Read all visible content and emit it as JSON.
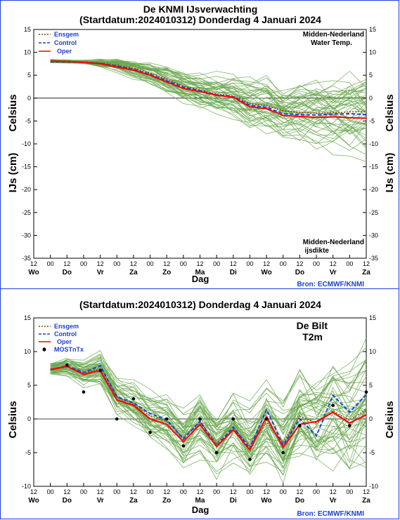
{
  "chart_data": [
    {
      "type": "line",
      "title": "De KNMI IJsverwachting",
      "subtitle": "(Startdatum:2024010312)  Donderdag  4 Januari 2024",
      "ylabel_left_top": "Celsius",
      "ylabel_left_bottom": "IJs (cm)",
      "ylabel_right_top": "Celsius",
      "ylabel_right_bottom": "IJs (cm)",
      "xlabel": "Dag",
      "source": "Bron: ECMWF/KNMI",
      "annotation_top": [
        "Midden-Nederland",
        "Water Temp."
      ],
      "annotation_bottom": [
        "Midden-Nederland",
        "ijsdikte"
      ],
      "ylim": [
        -35,
        15
      ],
      "yticks": [
        15,
        10,
        5,
        0,
        -5,
        -10,
        -15,
        -20,
        -25,
        -30,
        -35
      ],
      "xlim": [
        0,
        10
      ],
      "xticks_hours": [
        "12",
        "00",
        "12",
        "00",
        "12",
        "00",
        "12",
        "00",
        "12",
        "00",
        "12",
        "00",
        "12",
        "00",
        "12",
        "00",
        "12",
        "00",
        "12",
        "00",
        "12"
      ],
      "xticks_days": [
        "Wo",
        "Do",
        "Vr",
        "Za",
        "Zo",
        "Ma",
        "Di",
        "Wo",
        "Do",
        "Vr",
        "Za"
      ],
      "legend": [
        {
          "label": "Ensgem",
          "color": "#8b4513",
          "style": "dotted"
        },
        {
          "label": "Control",
          "color": "#1d3fd6",
          "style": "dashed"
        },
        {
          "label": "Oper",
          "color": "#ff0000",
          "style": "solid"
        }
      ],
      "grid": false,
      "x": [
        0.5,
        1,
        1.5,
        2,
        2.5,
        3,
        3.5,
        4,
        4.5,
        5,
        5.5,
        6,
        6.5,
        7,
        7.5,
        8,
        8.5,
        9,
        9.5,
        10
      ],
      "series": [
        {
          "name": "Ensgem",
          "values": [
            8.1,
            8.0,
            7.9,
            7.7,
            7.2,
            6.5,
            5.5,
            4.2,
            2.6,
            1.8,
            0.9,
            0.4,
            -1.2,
            -1.6,
            -2.8,
            -3.1,
            -3.3,
            -3.2,
            -3.0,
            -2.9
          ]
        },
        {
          "name": "Control",
          "values": [
            8.0,
            7.9,
            7.8,
            7.6,
            7.0,
            6.3,
            5.2,
            3.8,
            2.4,
            1.6,
            0.7,
            0.3,
            -1.6,
            -2.0,
            -3.4,
            -3.6,
            -3.7,
            -3.5,
            -3.4,
            -3.6
          ]
        },
        {
          "name": "Oper",
          "values": [
            8.1,
            8.0,
            7.8,
            7.5,
            6.8,
            6.1,
            5.0,
            3.5,
            2.1,
            1.4,
            0.6,
            0.2,
            -1.9,
            -2.3,
            -3.8,
            -4.0,
            -4.2,
            -4.1,
            -4.3,
            -4.4
          ]
        }
      ]
    },
    {
      "type": "line",
      "title": "(Startdatum:2024010312)  Donderdag  4 Januari 2024",
      "ylabel_left": "Celsius",
      "ylabel_right": "Celsius",
      "xlabel": "Dag",
      "source": "Bron: ECMWF/KNMI",
      "annotation": [
        "De Bilt",
        "T2m"
      ],
      "ylim": [
        -10,
        15
      ],
      "yticks": [
        15,
        10,
        5,
        0,
        -5,
        -10
      ],
      "xlim": [
        0,
        10
      ],
      "xticks_hours": [
        "12",
        "00",
        "12",
        "00",
        "12",
        "00",
        "12",
        "00",
        "12",
        "00",
        "12",
        "00",
        "12",
        "00",
        "12",
        "00",
        "12",
        "00",
        "12",
        "00",
        "12"
      ],
      "xticks_days": [
        "Wo",
        "Do",
        "Vr",
        "Za",
        "Zo",
        "Ma",
        "Di",
        "Wo",
        "Do",
        "Vr",
        "Za"
      ],
      "legend": [
        {
          "label": "Ensgem",
          "color": "#8b4513",
          "style": "dotted"
        },
        {
          "label": "Control",
          "color": "#1d3fd6",
          "style": "dashed"
        },
        {
          "label": "Oper",
          "color": "#ff0000",
          "style": "solid"
        },
        {
          "label": "MOSTnTx",
          "color": "#000000",
          "style": "marker"
        }
      ],
      "grid": false,
      "x": [
        0.5,
        1,
        1.5,
        2,
        2.5,
        3,
        3.5,
        4,
        4.5,
        5,
        5.5,
        6,
        6.5,
        7,
        7.5,
        8,
        8.5,
        9,
        9.5,
        10
      ],
      "series": [
        {
          "name": "Ensgem",
          "values": [
            7.4,
            7.8,
            6.8,
            7.4,
            3.2,
            2.2,
            0.5,
            -0.4,
            -2.8,
            -0.4,
            -3.6,
            -1.5,
            -4.0,
            -0.5,
            -3.5,
            0.4,
            -0.6,
            1.2,
            -0.2,
            1.4
          ]
        },
        {
          "name": "Control",
          "values": [
            7.3,
            7.9,
            6.9,
            7.9,
            3.3,
            2.4,
            0.8,
            -0.1,
            -3.0,
            -0.3,
            -4.0,
            -1.2,
            -4.4,
            1.4,
            -3.9,
            0.0,
            -2.5,
            3.5,
            1.0,
            3.6
          ]
        },
        {
          "name": "Oper",
          "values": [
            7.3,
            7.8,
            6.6,
            7.2,
            2.8,
            2.0,
            0.0,
            -0.8,
            -3.4,
            -0.8,
            -4.1,
            -1.6,
            -4.6,
            0.3,
            -4.2,
            -0.8,
            -0.4,
            1.0,
            -0.6,
            0.6
          ]
        },
        {
          "name": "MOSTnTx",
          "values": [
            null,
            8.0,
            4.0,
            7.2,
            0.0,
            3.0,
            -2.0,
            0.0,
            -4.0,
            0.0,
            -5.0,
            0.0,
            -6.0,
            0.0,
            -5.0,
            -1.0,
            null,
            2.0,
            -1.0,
            4.0
          ]
        }
      ]
    }
  ]
}
